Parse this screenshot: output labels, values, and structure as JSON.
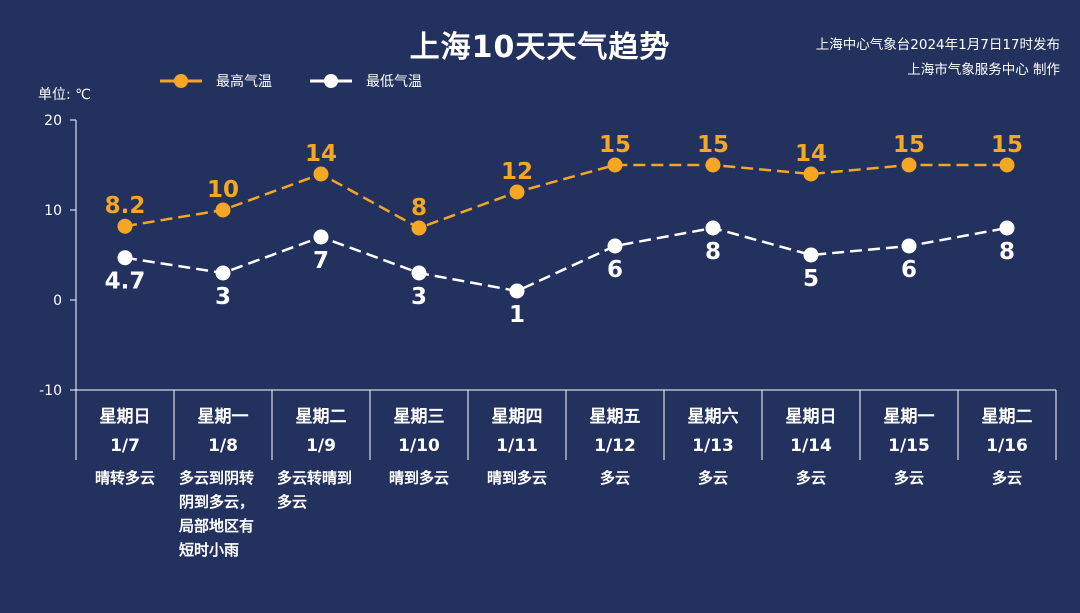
{
  "header": {
    "title": "上海10天天气趋势",
    "issuer_line1": "上海中心气象台2024年1月7日17时发布",
    "issuer_line2": "上海市气象服务中心 制作"
  },
  "unit_label": "单位: ℃",
  "colors": {
    "background": "#22315e",
    "high": "#f5a623",
    "low": "#ffffff",
    "axis": "#ffffff"
  },
  "chart_data": {
    "type": "line",
    "ylim": [
      -10,
      20
    ],
    "yticks": [
      20,
      10,
      0,
      -10
    ],
    "grid": false,
    "legend": "top-left",
    "categories": [
      {
        "weekday": "星期日",
        "date": "1/7",
        "weather": "晴转多云"
      },
      {
        "weekday": "星期一",
        "date": "1/8",
        "weather": "多云到阴转阴到多云，局部地区有短时小雨"
      },
      {
        "weekday": "星期二",
        "date": "1/9",
        "weather": "多云转晴到多云"
      },
      {
        "weekday": "星期三",
        "date": "1/10",
        "weather": "晴到多云"
      },
      {
        "weekday": "星期四",
        "date": "1/11",
        "weather": "晴到多云"
      },
      {
        "weekday": "星期五",
        "date": "1/12",
        "weather": "多云"
      },
      {
        "weekday": "星期六",
        "date": "1/13",
        "weather": "多云"
      },
      {
        "weekday": "星期日",
        "date": "1/14",
        "weather": "多云"
      },
      {
        "weekday": "星期一",
        "date": "1/15",
        "weather": "多云"
      },
      {
        "weekday": "星期二",
        "date": "1/16",
        "weather": "多云"
      }
    ],
    "series": [
      {
        "name": "最高气温",
        "color": "#f5a623",
        "values": [
          8.2,
          10,
          14,
          8,
          12,
          15,
          15,
          14,
          15,
          15
        ],
        "labels": [
          "8.2",
          "10",
          "14",
          "8",
          "12",
          "15",
          "15",
          "14",
          "15",
          "15"
        ]
      },
      {
        "name": "最低气温",
        "color": "#ffffff",
        "values": [
          4.7,
          3,
          7,
          3,
          1,
          6,
          8,
          5,
          6,
          8
        ],
        "labels": [
          "4.7",
          "3",
          "7",
          "3",
          "1",
          "6",
          "8",
          "5",
          "6",
          "8"
        ]
      }
    ]
  }
}
